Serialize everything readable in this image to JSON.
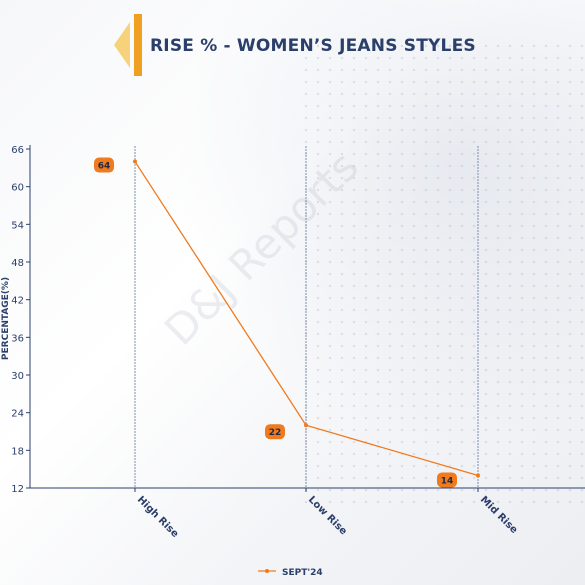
{
  "header": {
    "title": "RISE % - WOMEN’S JEANS STYLES"
  },
  "watermark": "D&J Reports",
  "colors": {
    "accent": "#f0a020",
    "title": "#2b3f6b",
    "series": "#f07a1e",
    "axis": "#2b3f6b"
  },
  "chart_data": {
    "type": "line",
    "title": "RISE % - WOMEN’S JEANS STYLES",
    "xlabel": "",
    "ylabel": "PERCENTAGE(%)",
    "categories": [
      "High Rise",
      "Low Rise",
      "Mid Rise"
    ],
    "series": [
      {
        "name": "SEPT'24",
        "values": [
          64,
          22,
          14
        ]
      }
    ],
    "ylim": [
      12,
      66
    ],
    "yticks": [
      12,
      18,
      24,
      30,
      36,
      42,
      48,
      54,
      60,
      66
    ],
    "grid": "vertical dashed at categories",
    "legend": "bottom-center"
  }
}
